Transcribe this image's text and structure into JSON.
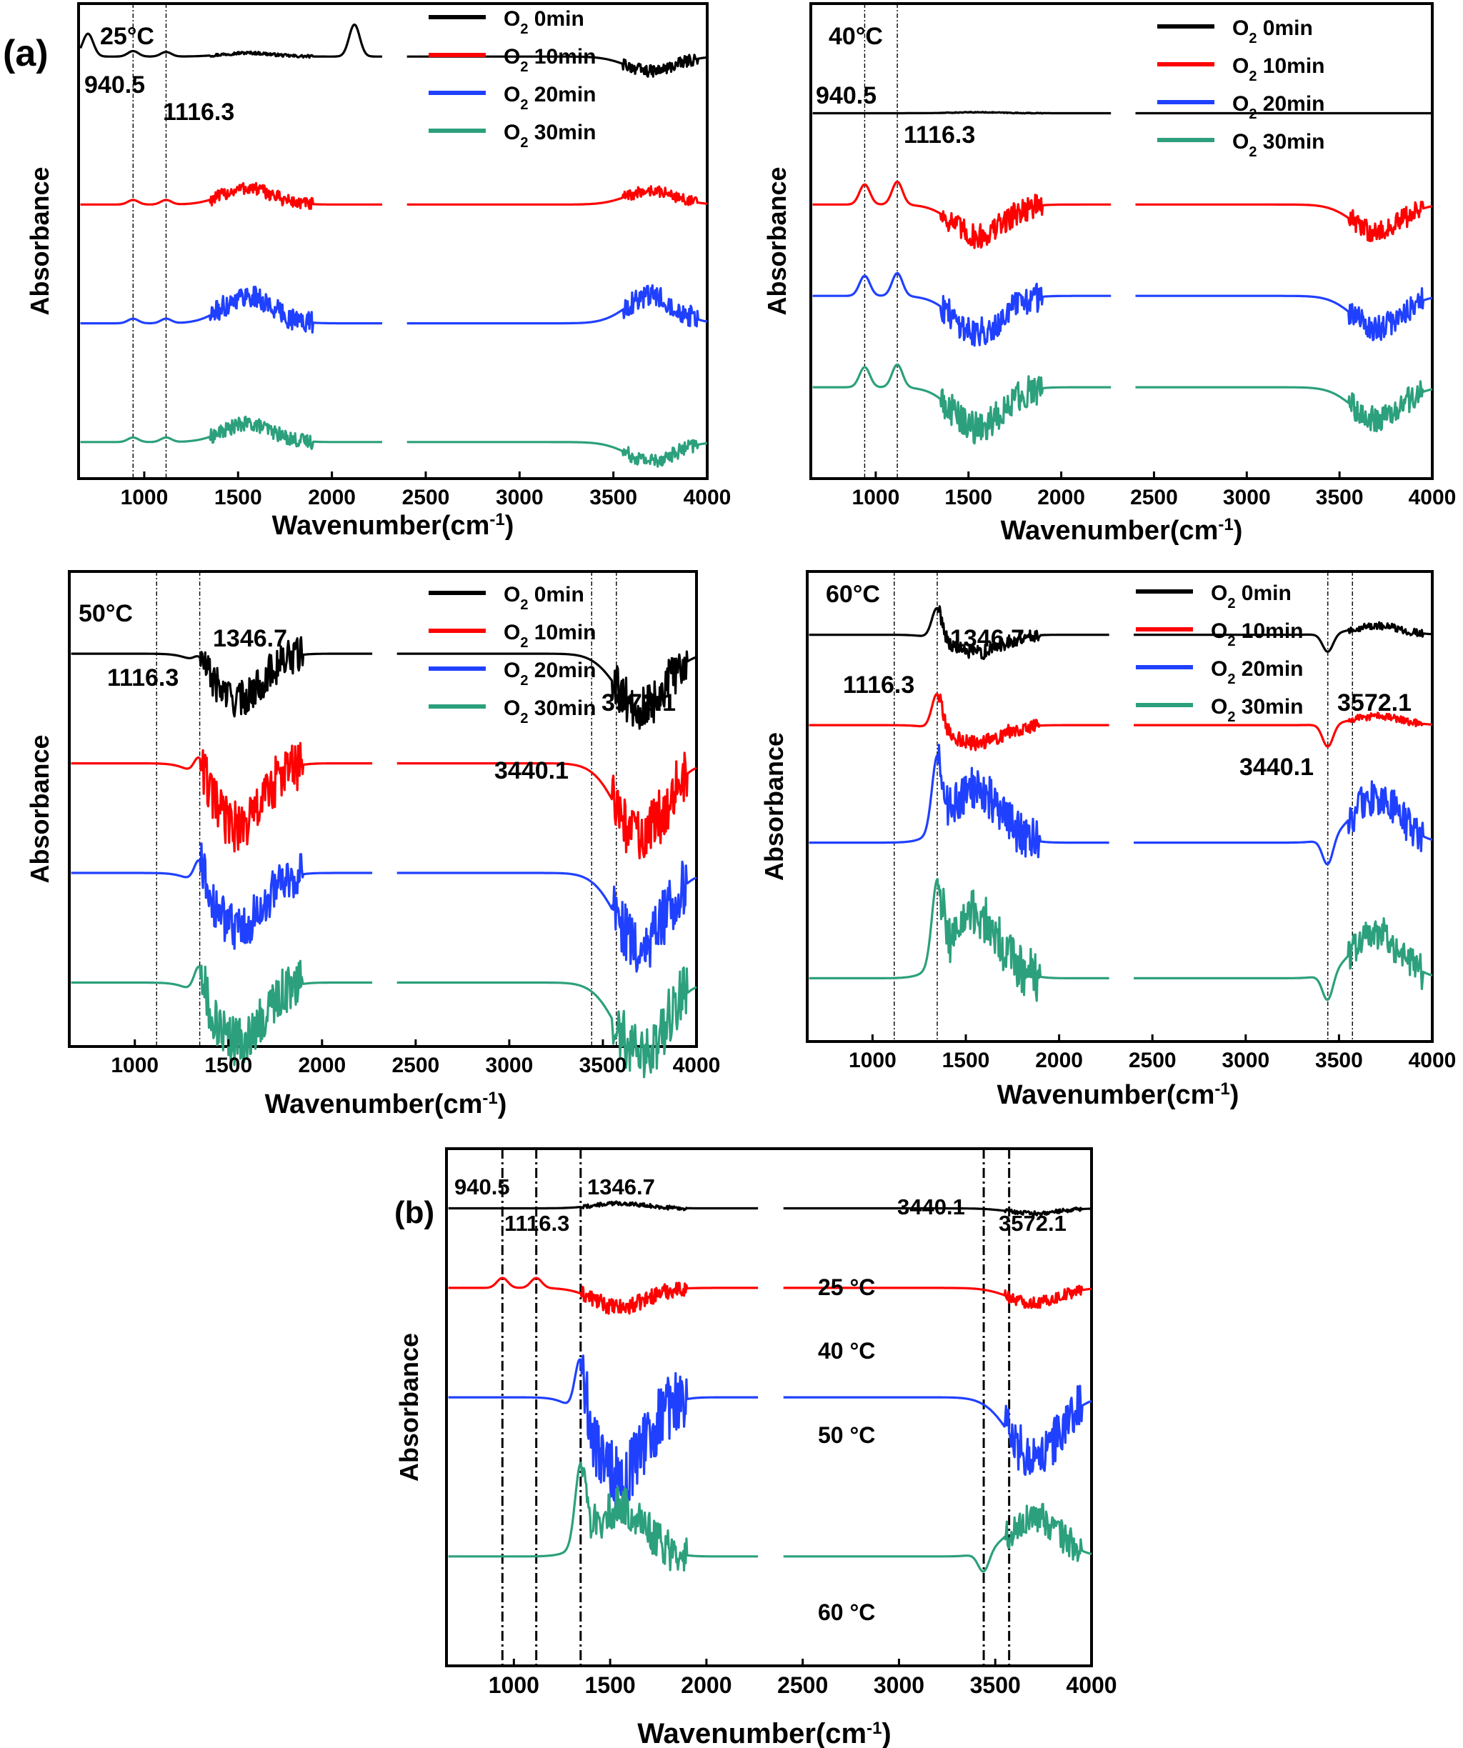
{
  "figure": {
    "label_a": "(a)",
    "label_b": "(b)"
  },
  "chart_data": [
    {
      "type": "line",
      "panel": "a-25C",
      "temperature_label": "25°C",
      "xlabel": "Wavenumber",
      "xlabel_unit_paren": "(cm",
      "xlabel_unit_sup": "-1",
      "xlabel_unit_close": ")",
      "ylabel": "Absorbance",
      "xlim": [
        650,
        4000
      ],
      "xticks": [
        "1000",
        "1500",
        "2000",
        "2500",
        "3000",
        "3500",
        "4000"
      ],
      "x_gap": [
        2270,
        2400
      ],
      "grid": false,
      "legend_position": "top-right",
      "reference_lines": [
        940.5,
        1116.3
      ],
      "annotations": [
        "940.5",
        "1116.3"
      ],
      "series": [
        {
          "name_prefix": "O",
          "name_sub": "2",
          "name_suffix": " 0min",
          "color": "#000000",
          "offset": 4.3,
          "baseline": 0.32,
          "features": [
            [
              700,
              0.25
            ],
            [
              940.5,
              0.06
            ],
            [
              1116.3,
              0.05
            ],
            [
              1550,
              0.04
            ],
            [
              2120,
              0.35
            ],
            [
              3700,
              -0.16
            ]
          ]
        },
        {
          "name_prefix": "O",
          "name_sub": "2",
          "name_suffix": " 10min",
          "color": "#ff0000",
          "offset": 3.0,
          "baseline": 0.0,
          "features": [
            [
              940.5,
              0.05
            ],
            [
              1116.3,
              0.05
            ],
            [
              1550,
              0.18
            ],
            [
              3700,
              0.15
            ]
          ]
        },
        {
          "name_prefix": "O",
          "name_sub": "2",
          "name_suffix": " 20min",
          "color": "#2040ff",
          "offset": 1.7,
          "baseline": 0.0,
          "features": [
            [
              940.5,
              0.05
            ],
            [
              1116.3,
              0.05
            ],
            [
              1550,
              0.3
            ],
            [
              3700,
              0.3
            ]
          ]
        },
        {
          "name_prefix": "O",
          "name_sub": "2",
          "name_suffix": " 30min",
          "color": "#2ca07c",
          "offset": 0.4,
          "baseline": 0.0,
          "features": [
            [
              940.5,
              0.05
            ],
            [
              1116.3,
              0.05
            ],
            [
              1550,
              0.2
            ],
            [
              3700,
              -0.2
            ]
          ]
        }
      ]
    },
    {
      "type": "line",
      "panel": "a-40C",
      "temperature_label": "40°C",
      "xlabel": "Wavenumber",
      "xlabel_unit_paren": "(cm",
      "xlabel_unit_sup": "-1",
      "xlabel_unit_close": ")",
      "ylabel": "Absorbance",
      "xlim": [
        650,
        4000
      ],
      "xticks": [
        "1000",
        "1500",
        "2000",
        "2500",
        "3000",
        "3500",
        "4000"
      ],
      "x_gap": [
        2270,
        2400
      ],
      "grid": false,
      "legend_position": "top-right",
      "reference_lines": [
        940.5,
        1116.3
      ],
      "annotations": [
        "940.5",
        "1116.3"
      ],
      "series": [
        {
          "name_prefix": "O",
          "name_sub": "2",
          "name_suffix": " 0min",
          "color": "#000000",
          "offset": 4.0,
          "baseline": 0.0,
          "features": [
            [
              1550,
              0.01
            ]
          ]
        },
        {
          "name_prefix": "O",
          "name_sub": "2",
          "name_suffix": " 10min",
          "color": "#ff0000",
          "offset": 3.0,
          "baseline": 0.0,
          "features": [
            [
              940.5,
              0.22
            ],
            [
              1116.3,
              0.25
            ],
            [
              1550,
              -0.35
            ],
            [
              3700,
              -0.3
            ]
          ]
        },
        {
          "name_prefix": "O",
          "name_sub": "2",
          "name_suffix": " 20min",
          "color": "#2040ff",
          "offset": 2.0,
          "baseline": 0.0,
          "features": [
            [
              940.5,
              0.22
            ],
            [
              1116.3,
              0.25
            ],
            [
              1550,
              -0.4
            ],
            [
              3700,
              -0.35
            ]
          ]
        },
        {
          "name_prefix": "O",
          "name_sub": "2",
          "name_suffix": " 30min",
          "color": "#2ca07c",
          "offset": 1.0,
          "baseline": 0.0,
          "features": [
            [
              940.5,
              0.22
            ],
            [
              1116.3,
              0.25
            ],
            [
              1550,
              -0.45
            ],
            [
              3700,
              -0.35
            ]
          ]
        }
      ]
    },
    {
      "type": "line",
      "panel": "a-50C",
      "temperature_label": "50°C",
      "xlabel": "Wavenumber",
      "xlabel_unit_paren": "(cm",
      "xlabel_unit_sup": "-1",
      "xlabel_unit_close": ")",
      "ylabel": "Absorbance",
      "xlim": [
        650,
        4000
      ],
      "xticks": [
        "1000",
        "1500",
        "2000",
        "2500",
        "3000",
        "3500",
        "4000"
      ],
      "x_gap": [
        2270,
        2400
      ],
      "grid": false,
      "legend_position": "top-right",
      "reference_lines": [
        1116.3,
        1346.7,
        3440.1,
        3572.1
      ],
      "annotations": [
        "1116.3",
        "1346.7",
        "3440.1",
        "3572.1"
      ],
      "series": [
        {
          "name_prefix": "O",
          "name_sub": "2",
          "name_suffix": " 0min",
          "color": "#000000",
          "offset": 4.3,
          "baseline": 0.0,
          "features": [
            [
              1346.7,
              0.1
            ],
            [
              1550,
              -0.5
            ],
            [
              3700,
              -0.6
            ]
          ]
        },
        {
          "name_prefix": "O",
          "name_sub": "2",
          "name_suffix": " 10min",
          "color": "#ff0000",
          "offset": 3.1,
          "baseline": 0.0,
          "features": [
            [
              1346.7,
              0.25
            ],
            [
              1550,
              -0.7
            ],
            [
              3700,
              -0.8
            ]
          ]
        },
        {
          "name_prefix": "O",
          "name_sub": "2",
          "name_suffix": " 20min",
          "color": "#2040ff",
          "offset": 1.9,
          "baseline": 0.0,
          "features": [
            [
              1346.7,
              0.3
            ],
            [
              1550,
              -0.6
            ],
            [
              3700,
              -0.8
            ]
          ]
        },
        {
          "name_prefix": "O",
          "name_sub": "2",
          "name_suffix": " 30min",
          "color": "#2ca07c",
          "offset": 0.7,
          "baseline": 0.0,
          "features": [
            [
              1346.7,
              0.35
            ],
            [
              1550,
              -0.65
            ],
            [
              3700,
              -0.8
            ]
          ]
        }
      ]
    },
    {
      "type": "line",
      "panel": "a-60C",
      "temperature_label": "60°C",
      "xlabel": "Wavenumber",
      "xlabel_unit_paren": "(cm",
      "xlabel_unit_sup": "-1",
      "xlabel_unit_close": ")",
      "ylabel": "Absorbance",
      "xlim": [
        650,
        4000
      ],
      "xticks": [
        "1000",
        "1500",
        "2000",
        "2500",
        "3000",
        "3500",
        "4000"
      ],
      "x_gap": [
        2270,
        2400
      ],
      "grid": false,
      "legend_position": "top-right",
      "reference_lines": [
        1116.3,
        1346.7,
        3440.1,
        3572.1
      ],
      "annotations": [
        "1116.3",
        "1346.7",
        "3440.1",
        "3572.1"
      ],
      "series": [
        {
          "name_prefix": "O",
          "name_sub": "2",
          "name_suffix": " 0min",
          "color": "#000000",
          "offset": 4.5,
          "baseline": 0.0,
          "features": [
            [
              1346.7,
              0.35
            ],
            [
              1550,
              -0.2
            ],
            [
              3440.1,
              -0.2
            ],
            [
              3700,
              0.1
            ]
          ]
        },
        {
          "name_prefix": "O",
          "name_sub": "2",
          "name_suffix": " 10min",
          "color": "#ff0000",
          "offset": 3.5,
          "baseline": 0.0,
          "features": [
            [
              1346.7,
              0.4
            ],
            [
              1550,
              -0.2
            ],
            [
              3440.1,
              -0.25
            ],
            [
              3700,
              0.1
            ]
          ]
        },
        {
          "name_prefix": "O",
          "name_sub": "2",
          "name_suffix": " 20min",
          "color": "#2040ff",
          "offset": 2.2,
          "baseline": 0.0,
          "features": [
            [
              1346.7,
              0.8
            ],
            [
              1550,
              0.6
            ],
            [
              3440.1,
              -0.3
            ],
            [
              3700,
              0.5
            ]
          ]
        },
        {
          "name_prefix": "O",
          "name_sub": "2",
          "name_suffix": " 30min",
          "color": "#2ca07c",
          "offset": 0.7,
          "baseline": 0.0,
          "features": [
            [
              1346.7,
              0.9
            ],
            [
              1550,
              0.7
            ],
            [
              3440.1,
              -0.3
            ],
            [
              3700,
              0.5
            ]
          ]
        }
      ]
    },
    {
      "type": "line",
      "panel": "b",
      "xlabel": "Wavenumber(cm",
      "xlabel_unit_sup": "-1",
      "xlabel_unit_close": ")",
      "ylabel": "Absorbance",
      "xlim": [
        650,
        4000
      ],
      "xticks": [
        "1000",
        "1500",
        "2000",
        "2500",
        "3000",
        "3500",
        "4000"
      ],
      "x_gap": [
        2270,
        2400
      ],
      "grid": false,
      "reference_lines": [
        940.5,
        1116.3,
        1346.7,
        3440.1,
        3572.1
      ],
      "annotations": [
        "940.5",
        "1116.3",
        "1346.7",
        "3440.1",
        "3572.1"
      ],
      "series": [
        {
          "name": "25 °C",
          "color": "#000000",
          "offset": 4.6,
          "baseline": 0.0,
          "features": [
            [
              1550,
              0.05
            ],
            [
              3700,
              -0.05
            ]
          ]
        },
        {
          "name": "40 °C",
          "color": "#ff0000",
          "offset": 3.8,
          "baseline": 0.0,
          "features": [
            [
              940.5,
              0.1
            ],
            [
              1116.3,
              0.1
            ],
            [
              1550,
              -0.2
            ],
            [
              3700,
              -0.15
            ]
          ]
        },
        {
          "name": "50 °C",
          "color": "#2040ff",
          "offset": 2.7,
          "baseline": 0.0,
          "features": [
            [
              1346.7,
              0.6
            ],
            [
              1550,
              -0.8
            ],
            [
              3700,
              -0.6
            ]
          ]
        },
        {
          "name": "60 °C",
          "color": "#2ca07c",
          "offset": 1.1,
          "baseline": 0.0,
          "features": [
            [
              1346.7,
              0.8
            ],
            [
              1550,
              0.5
            ],
            [
              3440.1,
              -0.2
            ],
            [
              3700,
              0.4
            ]
          ]
        }
      ]
    }
  ]
}
